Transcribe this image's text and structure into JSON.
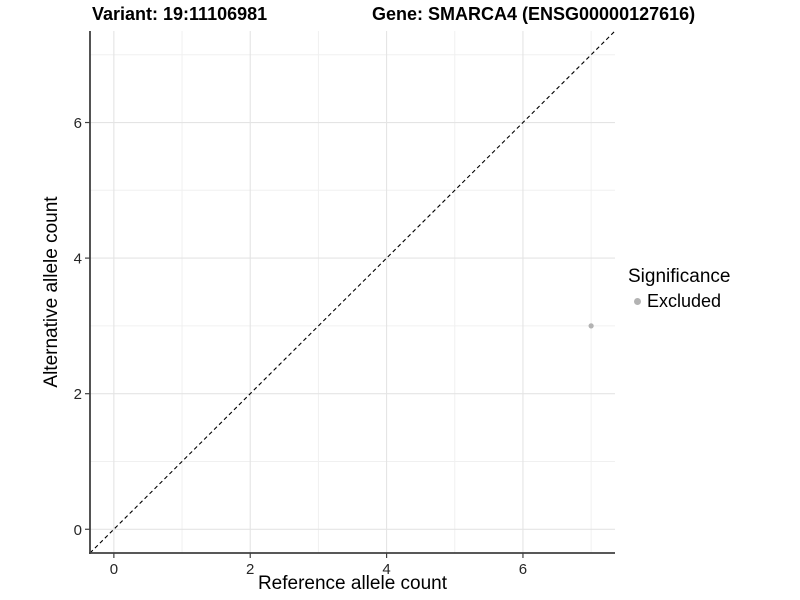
{
  "chart_data": {
    "type": "scatter",
    "title_variant": "Variant: 19:11106981",
    "title_gene": "Gene: SMARCA4 (ENSG00000127616)",
    "xlabel": "Reference allele count",
    "ylabel": "Alternative allele count",
    "xlim": [
      -0.35,
      7.35
    ],
    "ylim": [
      -0.35,
      7.35
    ],
    "xticks": [
      0,
      2,
      4,
      6
    ],
    "xtick_labels": [
      "0",
      "2",
      "4",
      "6"
    ],
    "yticks": [
      0,
      2,
      4,
      6
    ],
    "ytick_labels": [
      "0",
      "2",
      "4",
      "6"
    ],
    "minor_grid": [
      1,
      3,
      5,
      7
    ],
    "grid": "major and minor gridlines on white panel",
    "reference_line": {
      "kind": "identity y=x",
      "style": "dashed",
      "color": "#000000"
    },
    "series": [
      {
        "name": "Excluded",
        "marker": "circle",
        "color": "#b3b3b3",
        "points": [
          {
            "x": 7,
            "y": 3
          }
        ]
      }
    ],
    "legend": {
      "title": "Significance",
      "position": "right",
      "entries": [
        {
          "label": "Excluded",
          "color": "#b3b3b3"
        }
      ]
    },
    "colors": {
      "grid_major": "#e4e4e4",
      "grid_minor": "#f0f0f0",
      "axis": "#404040",
      "tick_text": "#262626",
      "title_text": "#000000",
      "background": "#ffffff"
    }
  }
}
